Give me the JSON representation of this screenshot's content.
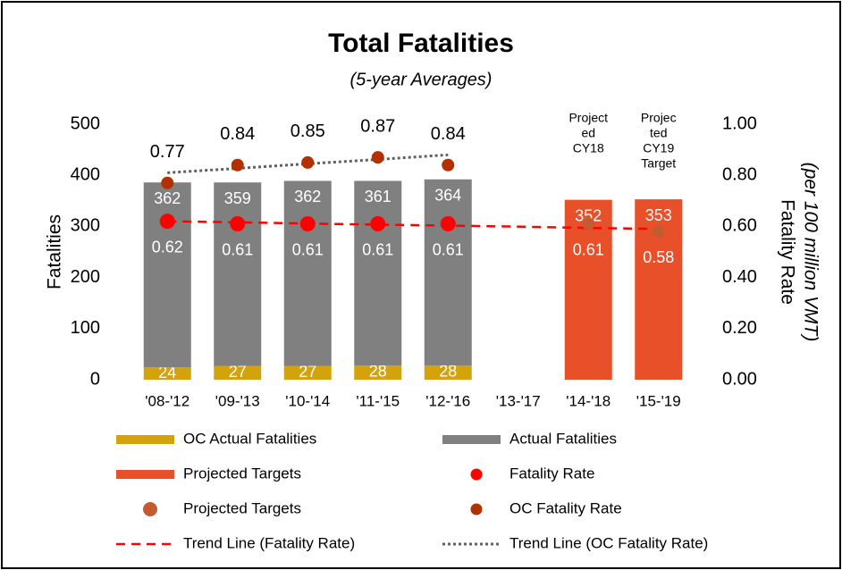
{
  "chart_data": {
    "type": "bar",
    "title": "Total Fatalities",
    "subtitle": "(5-year Averages)",
    "y_label": "Fatalities",
    "y2_label": [
      "Fatality Rate",
      "(per 100 million VMT)"
    ],
    "categories": [
      "'08-'12",
      "'09-'13",
      "'10-'14",
      "'11-'15",
      "'12-'16",
      "'13-'17",
      "'14-'18",
      "'15-'19"
    ],
    "ylim": [
      0,
      500
    ],
    "yticks": [
      0,
      100,
      200,
      300,
      400,
      500
    ],
    "y2lim": [
      0,
      1
    ],
    "y2ticks": [
      {
        "value": 0,
        "label": "0.00"
      },
      {
        "value": 0.2,
        "label": "0.20"
      },
      {
        "value": 0.4,
        "label": "0.40"
      },
      {
        "value": 0.6,
        "label": "0.60"
      },
      {
        "value": 0.8,
        "label": "0.80"
      },
      {
        "value": 1,
        "label": "1.00"
      }
    ],
    "annotations": [
      {
        "category": 6,
        "lines": [
          "Project",
          "ed",
          "CY18"
        ]
      },
      {
        "category": 7,
        "lines": [
          "Projec",
          "ted",
          "CY19",
          "Target"
        ]
      }
    ],
    "series": [
      {
        "name": "OC Actual Fatalities",
        "kind": "bar",
        "stack": true,
        "color": "#d4a20c",
        "values": [
          24,
          27,
          27,
          28,
          28,
          null,
          null,
          null
        ]
      },
      {
        "name": "Actual Fatalities",
        "kind": "bar",
        "stack": true,
        "color": "#808080",
        "values": [
          362,
          359,
          362,
          361,
          364,
          null,
          null,
          null
        ]
      },
      {
        "name": "Projected Targets",
        "kind": "bar",
        "color": "#e8502a",
        "values": [
          null,
          null,
          null,
          null,
          null,
          null,
          352,
          353
        ]
      },
      {
        "name": "Fatality Rate",
        "kind": "scatter",
        "axis": "y2",
        "color": "#ff0000",
        "values": [
          0.62,
          0.61,
          0.61,
          0.61,
          0.61,
          null,
          null,
          null
        ]
      },
      {
        "name": "Projected Targets",
        "kind": "scatter",
        "axis": "y2",
        "color": "#c55a30",
        "values": [
          null,
          null,
          null,
          null,
          null,
          null,
          0.61,
          0.58
        ]
      },
      {
        "name": "OC Fatality Rate",
        "kind": "scatter",
        "axis": "y2",
        "color": "#b33000",
        "values": [
          0.77,
          0.84,
          0.85,
          0.87,
          0.84,
          null,
          null,
          null
        ]
      },
      {
        "name": "Trend Line (Fatality Rate)",
        "kind": "line",
        "axis": "y2",
        "line_style": "dashed",
        "color": "#ff0000",
        "values": [
          0.62,
          0.616,
          0.611,
          0.607,
          0.603,
          0.599,
          0.594,
          0.59
        ]
      },
      {
        "name": "Trend Line (OC Fatality Rate)",
        "kind": "line",
        "axis": "y2",
        "line_style": "dotted",
        "color": "#606060",
        "values": [
          0.81,
          0.827,
          0.845,
          0.862,
          0.88,
          null,
          null,
          null
        ]
      }
    ]
  }
}
